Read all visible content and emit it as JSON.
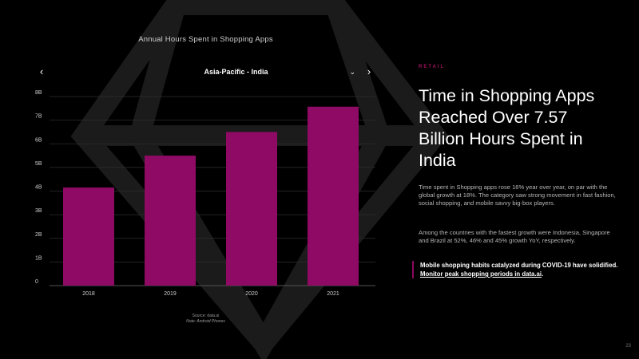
{
  "chart_data": {
    "type": "bar",
    "title": "Annual Hours Spent in Shopping Apps",
    "selector": "Asia-Pacific - India",
    "categories": [
      "2018",
      "2019",
      "2020",
      "2021"
    ],
    "values": [
      4.15,
      5.5,
      6.5,
      7.57
    ],
    "y_ticks": [
      "0",
      "1B",
      "2B",
      "3B",
      "4B",
      "5B",
      "6B",
      "7B",
      "8B"
    ],
    "ylim": [
      0,
      8
    ],
    "unit": "B",
    "xlabel": "",
    "ylabel": "",
    "grid": true,
    "bar_color": "#8e0a64",
    "source": "Source: data.ai",
    "note": "Note: Android Phones"
  },
  "article": {
    "kicker": "RETAIL",
    "headline": "Time in Shopping Apps Reached Over 7.57 Billion Hours Spent in India",
    "para1": "Time spent in Shopping apps rose 16% year over year, on par with the global growth at 18%. The category saw strong movement in fast fashion, social shopping, and mobile savvy big-box players.",
    "para2": "Among the countries with the fastest growth were Indonesia, Singapore and Brazil at 52%, 46% and 45% growth YoY, respectively.",
    "callout_text": "Mobile shopping habits catalyzed during COVID-19 have solidified. ",
    "callout_link": "Monitor peak shopping periods in data.ai",
    "callout_end": "."
  },
  "page_number": "23",
  "colors": {
    "accent": "#8e0a64",
    "kicker": "#a3105f",
    "background": "#000000"
  }
}
